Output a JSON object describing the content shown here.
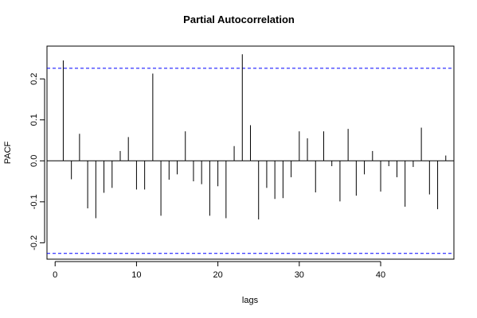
{
  "chart_data": {
    "type": "bar",
    "title": "Partial Autocorrelation",
    "xlabel": "lags",
    "ylabel": "PACF",
    "xlim": [
      -1,
      49
    ],
    "ylim": [
      -0.24,
      0.28
    ],
    "x_ticks": [
      0,
      10,
      20,
      30,
      40
    ],
    "y_ticks": [
      -0.2,
      -0.1,
      0.0,
      0.1,
      0.2
    ],
    "y_tick_labels": [
      "-0.2",
      "-0.1",
      "0.0",
      "0.1",
      "0.2"
    ],
    "confidence_band": 0.226,
    "confidence_color": "#0000ff",
    "lags": [
      1,
      2,
      3,
      4,
      5,
      6,
      7,
      8,
      9,
      10,
      11,
      12,
      13,
      14,
      15,
      16,
      17,
      18,
      19,
      20,
      21,
      22,
      23,
      24,
      25,
      26,
      27,
      28,
      29,
      30,
      31,
      32,
      33,
      34,
      35,
      36,
      37,
      38,
      39,
      40,
      41,
      42,
      43,
      44,
      45,
      46,
      47,
      48
    ],
    "values": [
      0.245,
      -0.045,
      0.066,
      -0.116,
      -0.14,
      -0.078,
      -0.066,
      0.024,
      0.058,
      -0.07,
      -0.07,
      0.213,
      -0.134,
      -0.046,
      -0.033,
      0.072,
      -0.05,
      -0.057,
      -0.134,
      -0.062,
      -0.14,
      0.036,
      0.26,
      0.087,
      -0.143,
      -0.066,
      -0.093,
      -0.091,
      -0.04,
      0.072,
      0.055,
      -0.077,
      0.072,
      -0.013,
      -0.099,
      0.078,
      -0.085,
      -0.033,
      0.024,
      -0.075,
      -0.013,
      -0.04,
      -0.112,
      -0.015,
      0.081,
      -0.082,
      -0.118,
      0.013
    ],
    "grid": false
  }
}
